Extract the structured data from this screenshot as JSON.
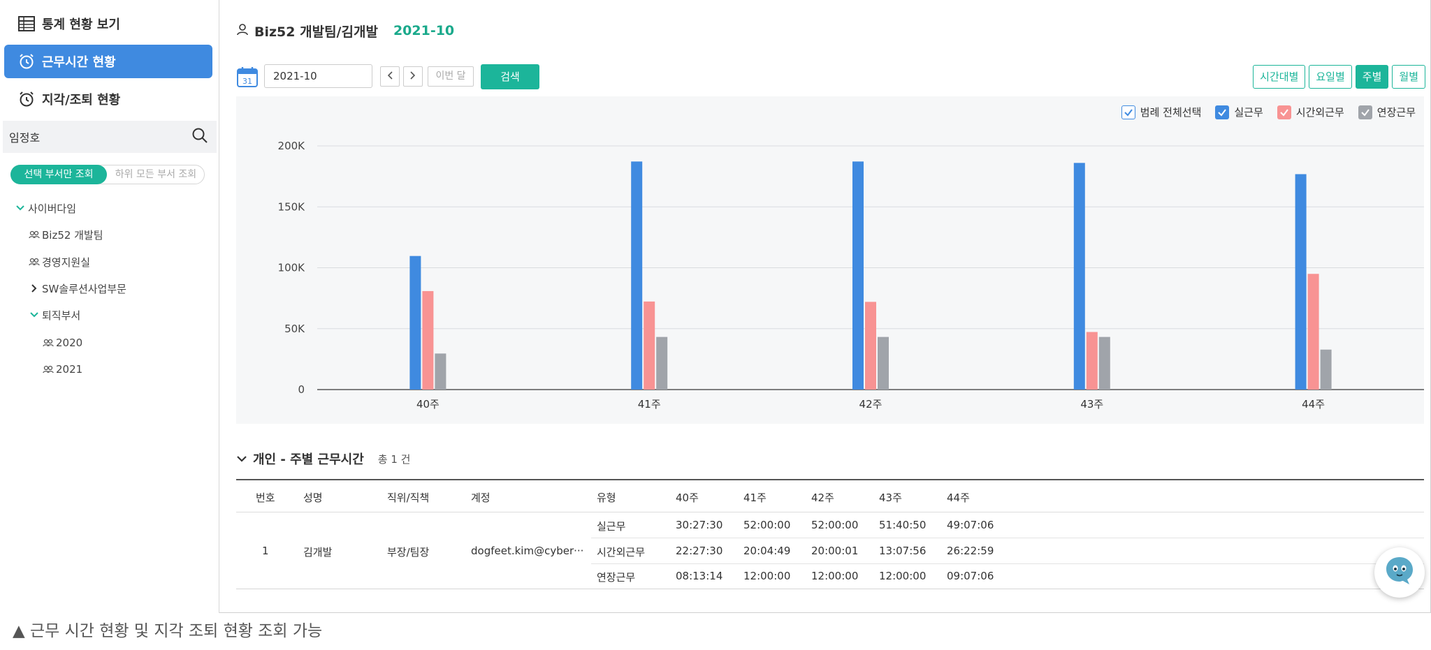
{
  "sidebar": {
    "nav": [
      {
        "label": "통계 현황 보기",
        "icon": "table-icon"
      },
      {
        "label": "근무시간 현황",
        "icon": "alarm-clock-icon"
      },
      {
        "label": "지각/조퇴 현황",
        "icon": "alarm-clock-icon"
      }
    ],
    "search": {
      "value": "임정호"
    },
    "scope": {
      "selected": "선택 부서만 조회",
      "other": "하위 모든 부서 조회"
    },
    "tree": [
      {
        "label": "사이버다임"
      },
      {
        "label": "Biz52 개발팀"
      },
      {
        "label": "경영지원실"
      },
      {
        "label": "SW솔루션사업부문"
      },
      {
        "label": "퇴직부서"
      },
      {
        "label": "2020"
      },
      {
        "label": "2021"
      }
    ]
  },
  "header": {
    "team": "Biz52 개발팀/김개발",
    "month": "2021-10"
  },
  "toolbar": {
    "date_value": "2021-10",
    "this_month": "이번 달",
    "search_label": "검색",
    "calendar_day": "31"
  },
  "view_buttons": [
    {
      "label": "시간대별",
      "active": false
    },
    {
      "label": "요일별",
      "active": false
    },
    {
      "label": "주별",
      "active": true
    },
    {
      "label": "월별",
      "active": false
    }
  ],
  "legend": {
    "select_all": "범례 전체선택",
    "items": [
      {
        "name": "실근무",
        "color": "#3f8ae0"
      },
      {
        "name": "시간외근무",
        "color": "#f89393"
      },
      {
        "name": "연장근무",
        "color": "#a0a4aa"
      }
    ]
  },
  "chart_data": {
    "type": "bar",
    "categories": [
      "40주",
      "41주",
      "42주",
      "43주",
      "44주"
    ],
    "series": [
      {
        "name": "실근무",
        "color": "#3f8ae0",
        "values": [
          109650,
          187200,
          187200,
          186050,
          176826
        ]
      },
      {
        "name": "시간외근무",
        "color": "#f89393",
        "values": [
          80850,
          72289,
          72001,
          47276,
          94979
        ]
      },
      {
        "name": "연장근무",
        "color": "#a0a4aa",
        "values": [
          29594,
          43200,
          43200,
          43200,
          32826
        ]
      }
    ],
    "y_ticks": [
      "0",
      "50K",
      "100K",
      "150K",
      "200K"
    ],
    "ylim": [
      0,
      200000
    ],
    "grid": true,
    "legend_position": "top-right"
  },
  "table": {
    "section_title": "개인 - 주별 근무시간",
    "count": "총 1 건",
    "headers": [
      "번호",
      "성명",
      "직위/직책",
      "계정",
      "유형",
      "40주",
      "41주",
      "42주",
      "43주",
      "44주"
    ],
    "person": {
      "no": "1",
      "name": "김개발",
      "position": "부장/팀장",
      "account": "dogfeet.kim@cyber···"
    },
    "rows": [
      {
        "type": "실근무",
        "values": [
          "30:27:30",
          "52:00:00",
          "52:00:00",
          "51:40:50",
          "49:07:06"
        ]
      },
      {
        "type": "시간외근무",
        "values": [
          "22:27:30",
          "20:04:49",
          "20:00:01",
          "13:07:56",
          "26:22:59"
        ]
      },
      {
        "type": "연장근무",
        "values": [
          "08:13:14",
          "12:00:00",
          "12:00:00",
          "12:00:00",
          "09:07:06"
        ]
      }
    ]
  },
  "caption": "▲ 근무 시간 현황 및 지각 조퇴 현황 조회 가능"
}
